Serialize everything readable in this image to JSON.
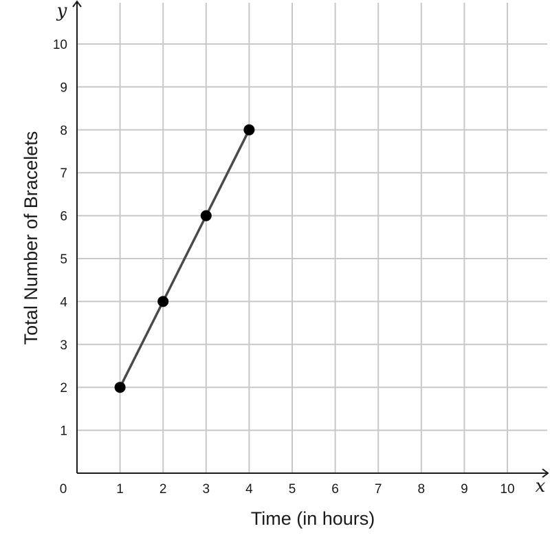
{
  "chart_data": {
    "type": "line",
    "title": "",
    "xlabel": "Time (in hours)",
    "ylabel": "Total Number of Bracelets",
    "x_axis_variable": "x",
    "y_axis_variable": "y",
    "origin_label": "0",
    "xlim": [
      0,
      10
    ],
    "ylim": [
      0,
      10
    ],
    "x_ticks": [
      1,
      2,
      3,
      4,
      5,
      6,
      7,
      8,
      9,
      10
    ],
    "y_ticks": [
      1,
      2,
      3,
      4,
      5,
      6,
      7,
      8,
      9,
      10
    ],
    "grid": true,
    "series": [
      {
        "x": [
          1,
          2,
          3,
          4
        ],
        "y": [
          2,
          4,
          6,
          8
        ],
        "color": "#4a4a4a",
        "marker_color": "#000000"
      }
    ]
  }
}
